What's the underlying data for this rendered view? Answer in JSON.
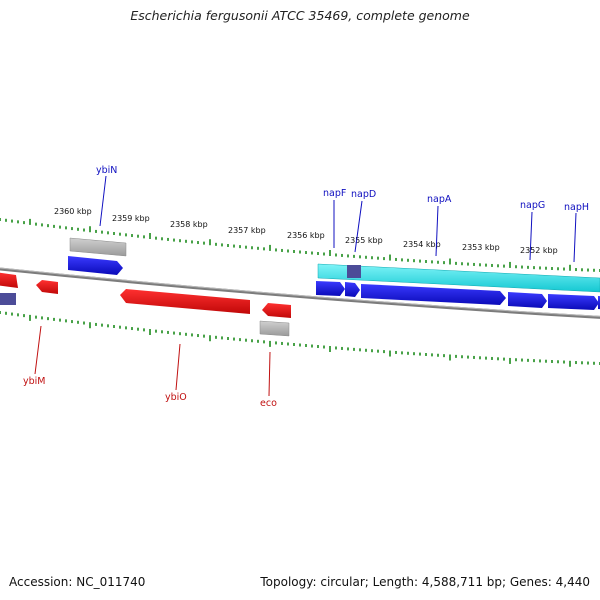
{
  "title": "Escherichia fergusonii ATCC 35469, complete genome",
  "footer": {
    "accession": "Accession: NC_011740",
    "summary": "Topology: circular; Length: 4,588,711 bp; Genes: 4,440"
  },
  "colors": {
    "forward_gene": "#1010e0",
    "reverse_gene": "#e01010",
    "operon": "#20d8e0",
    "misc_feature": "#a8a8a8",
    "forward_label": "#1010c0",
    "reverse_label": "#c01010",
    "tick": "#1a8a1a",
    "backbone": "#808080"
  },
  "scale_labels": [
    "2360 kbp",
    "2359 kbp",
    "2358 kbp",
    "2357 kbp",
    "2356 kbp",
    "2355 kbp",
    "2354 kbp",
    "2353 kbp",
    "2352 kbp"
  ],
  "gene_labels": {
    "forward": [
      "ybiN",
      "napF",
      "napD",
      "napA",
      "napG",
      "napH"
    ],
    "reverse": [
      "ybiM",
      "ybiO",
      "eco"
    ]
  }
}
